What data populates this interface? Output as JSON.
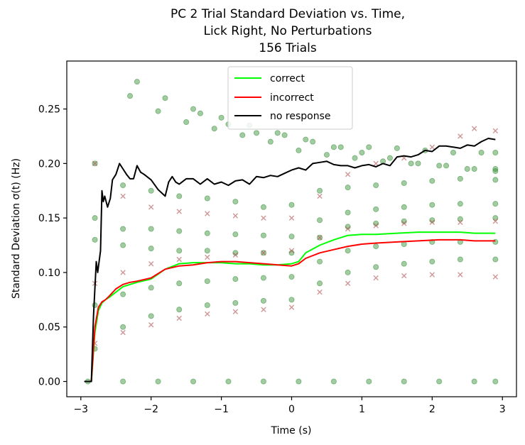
{
  "chart_data": {
    "type": "scatter",
    "title": [
      "PC 2 Trial Standard Deviation vs. Time,",
      "Lick Right, No Perturbations",
      "156 Trials"
    ],
    "xlabel": "Time (s)",
    "ylabel": "Standard Deviation σ(t) (Hz)",
    "xlim": [
      -3.2,
      3.2
    ],
    "ylim": [
      -0.014,
      0.294
    ],
    "xticks": [
      -3,
      -2,
      -1,
      0,
      1,
      2,
      3
    ],
    "xtick_labels": [
      "−3",
      "−2",
      "−1",
      "0",
      "1",
      "2",
      "3"
    ],
    "yticks": [
      0.0,
      0.05,
      0.1,
      0.15,
      0.2,
      0.25
    ],
    "ytick_labels": [
      "0.00",
      "0.05",
      "0.10",
      "0.15",
      "0.20",
      "0.25"
    ],
    "grid": false,
    "legend_position": "top-center",
    "legend": [
      {
        "label": "correct",
        "color": "#00ff00"
      },
      {
        "label": "incorrect",
        "color": "#ff0000"
      },
      {
        "label": "no response",
        "color": "#000000"
      }
    ],
    "series": [
      {
        "name": "correct",
        "kind": "line",
        "color": "#00ff00",
        "x": [
          -2.95,
          -2.85,
          -2.8,
          -2.75,
          -2.7,
          -2.65,
          -2.6,
          -2.5,
          -2.4,
          -2.3,
          -2.2,
          -2.0,
          -1.8,
          -1.6,
          -1.4,
          -1.2,
          -1.0,
          -0.8,
          -0.6,
          -0.4,
          -0.2,
          0.0,
          0.1,
          0.2,
          0.4,
          0.6,
          0.8,
          1.0,
          1.2,
          1.5,
          1.8,
          2.1,
          2.4,
          2.6,
          2.9
        ],
        "y": [
          0.0,
          0.0,
          0.045,
          0.065,
          0.072,
          0.075,
          0.077,
          0.082,
          0.087,
          0.089,
          0.091,
          0.094,
          0.103,
          0.108,
          0.109,
          0.109,
          0.109,
          0.108,
          0.108,
          0.107,
          0.107,
          0.108,
          0.11,
          0.118,
          0.125,
          0.13,
          0.134,
          0.135,
          0.135,
          0.136,
          0.137,
          0.137,
          0.137,
          0.136,
          0.136
        ]
      },
      {
        "name": "incorrect",
        "kind": "line",
        "color": "#ff0000",
        "x": [
          -2.95,
          -2.85,
          -2.8,
          -2.75,
          -2.7,
          -2.65,
          -2.6,
          -2.5,
          -2.4,
          -2.3,
          -2.2,
          -2.0,
          -1.8,
          -1.6,
          -1.4,
          -1.2,
          -1.0,
          -0.8,
          -0.6,
          -0.4,
          -0.2,
          0.0,
          0.1,
          0.2,
          0.4,
          0.6,
          0.8,
          1.0,
          1.2,
          1.5,
          1.8,
          2.1,
          2.4,
          2.6,
          2.9
        ],
        "y": [
          0.0,
          0.0,
          0.05,
          0.068,
          0.073,
          0.075,
          0.078,
          0.085,
          0.089,
          0.091,
          0.092,
          0.095,
          0.103,
          0.106,
          0.107,
          0.109,
          0.11,
          0.11,
          0.109,
          0.108,
          0.107,
          0.106,
          0.108,
          0.113,
          0.118,
          0.121,
          0.124,
          0.126,
          0.127,
          0.128,
          0.129,
          0.13,
          0.13,
          0.129,
          0.129
        ]
      },
      {
        "name": "no response",
        "kind": "line",
        "color": "#000000",
        "x": [
          -2.95,
          -2.85,
          -2.82,
          -2.78,
          -2.76,
          -2.72,
          -2.7,
          -2.68,
          -2.66,
          -2.62,
          -2.58,
          -2.55,
          -2.5,
          -2.45,
          -2.4,
          -2.35,
          -2.3,
          -2.25,
          -2.2,
          -2.15,
          -2.1,
          -2.0,
          -1.9,
          -1.8,
          -1.75,
          -1.7,
          -1.65,
          -1.6,
          -1.5,
          -1.4,
          -1.3,
          -1.2,
          -1.1,
          -1.0,
          -0.9,
          -0.8,
          -0.7,
          -0.6,
          -0.5,
          -0.4,
          -0.3,
          -0.2,
          -0.1,
          0.0,
          0.1,
          0.2,
          0.3,
          0.4,
          0.5,
          0.6,
          0.7,
          0.8,
          0.9,
          1.0,
          1.1,
          1.2,
          1.3,
          1.4,
          1.5,
          1.6,
          1.7,
          1.8,
          1.9,
          2.0,
          2.1,
          2.2,
          2.3,
          2.4,
          2.5,
          2.6,
          2.7,
          2.8,
          2.9
        ],
        "y": [
          0.0,
          0.0,
          0.06,
          0.11,
          0.1,
          0.12,
          0.175,
          0.165,
          0.17,
          0.16,
          0.168,
          0.185,
          0.19,
          0.2,
          0.195,
          0.19,
          0.186,
          0.186,
          0.198,
          0.192,
          0.19,
          0.185,
          0.176,
          0.17,
          0.183,
          0.188,
          0.183,
          0.181,
          0.186,
          0.186,
          0.181,
          0.186,
          0.181,
          0.183,
          0.18,
          0.184,
          0.185,
          0.181,
          0.188,
          0.187,
          0.189,
          0.188,
          0.191,
          0.194,
          0.196,
          0.194,
          0.2,
          0.201,
          0.202,
          0.199,
          0.198,
          0.198,
          0.196,
          0.198,
          0.199,
          0.197,
          0.2,
          0.198,
          0.206,
          0.207,
          0.206,
          0.208,
          0.212,
          0.211,
          0.216,
          0.216,
          0.215,
          0.214,
          0.217,
          0.216,
          0.22,
          0.223,
          0.222
        ]
      },
      {
        "name": "correct",
        "kind": "trial-markers",
        "marker": "circle",
        "color": "#2e8b2e",
        "trials": [
          {
            "x": [
              -2.2,
              -1.8,
              -1.4,
              -1.0,
              -0.6,
              -0.2,
              0.2,
              0.6,
              1.0,
              1.4,
              1.8,
              2.2,
              2.6,
              2.9
            ],
            "y": [
              0.275,
              0.26,
              0.25,
              0.242,
              0.235,
              0.228,
              0.222,
              0.215,
              0.21,
              0.205,
              0.2,
              0.198,
              0.195,
              0.195
            ]
          },
          {
            "x": [
              -2.3,
              -1.9,
              -1.5,
              -1.1,
              -0.7,
              -0.3,
              0.1,
              0.5,
              0.9,
              1.3,
              1.7,
              2.1,
              2.5,
              2.9
            ],
            "y": [
              0.262,
              0.248,
              0.238,
              0.232,
              0.226,
              0.22,
              0.212,
              0.208,
              0.205,
              0.202,
              0.2,
              0.198,
              0.195,
              0.193
            ]
          },
          {
            "x": [
              -1.3,
              -0.9,
              -0.5,
              -0.1,
              0.3,
              0.7,
              1.1,
              1.5,
              1.9,
              2.3,
              2.7,
              2.9
            ],
            "y": [
              0.246,
              0.236,
              0.228,
              0.226,
              0.22,
              0.215,
              0.215,
              0.214,
              0.212,
              0.21,
              0.21,
              0.21
            ]
          },
          {
            "x": [
              -2.8,
              -2.4,
              -2.0,
              -1.6,
              -1.2,
              -0.8,
              -0.4,
              0.0,
              0.4,
              0.8,
              1.2,
              1.6,
              2.0,
              2.4,
              2.9
            ],
            "y": [
              0.2,
              0.18,
              0.175,
              0.17,
              0.168,
              0.165,
              0.16,
              0.162,
              0.175,
              0.178,
              0.18,
              0.182,
              0.184,
              0.186,
              0.185
            ]
          },
          {
            "x": [
              -2.8,
              -2.4,
              -2.0,
              -1.6,
              -1.2,
              -0.8,
              -0.4,
              0.0,
              0.4,
              0.8,
              1.2,
              1.6,
              2.0,
              2.4,
              2.9
            ],
            "y": [
              0.15,
              0.14,
              0.14,
              0.138,
              0.136,
              0.135,
              0.134,
              0.133,
              0.148,
              0.155,
              0.158,
              0.16,
              0.162,
              0.163,
              0.163
            ]
          },
          {
            "x": [
              -2.8,
              -2.4,
              -2.0,
              -1.6,
              -1.2,
              -0.8,
              -0.4,
              0.0,
              0.4,
              0.8,
              1.2,
              1.6,
              2.0,
              2.4,
              2.9
            ],
            "y": [
              0.13,
              0.125,
              0.122,
              0.12,
              0.12,
              0.118,
              0.118,
              0.118,
              0.132,
              0.142,
              0.145,
              0.147,
              0.148,
              0.149,
              0.15
            ]
          },
          {
            "x": [
              -2.8,
              -2.4,
              -2.0,
              -1.6,
              -1.2,
              -0.8,
              -0.4,
              0.0,
              0.4,
              0.8,
              1.2,
              1.6,
              2.0,
              2.4,
              2.9
            ],
            "y": [
              0.07,
              0.08,
              0.086,
              0.09,
              0.092,
              0.094,
              0.095,
              0.096,
              0.11,
              0.12,
              0.124,
              0.126,
              0.128,
              0.128,
              0.128
            ]
          },
          {
            "x": [
              -2.8,
              -2.4,
              -2.0,
              -1.6,
              -1.2,
              -0.8,
              -0.4,
              0.0,
              0.4,
              0.8,
              1.2,
              1.6,
              2.0,
              2.4,
              2.9
            ],
            "y": [
              0.03,
              0.05,
              0.06,
              0.066,
              0.07,
              0.072,
              0.074,
              0.075,
              0.09,
              0.1,
              0.105,
              0.108,
              0.11,
              0.112,
              0.112
            ]
          },
          {
            "x": [
              -2.9,
              -2.4,
              -1.9,
              -1.4,
              -0.9,
              -0.4,
              0.1,
              0.6,
              1.1,
              1.6,
              2.1,
              2.6,
              2.9
            ],
            "y": [
              0.0,
              0.0,
              0.0,
              0.0,
              0.0,
              0.0,
              0.0,
              0.0,
              0.0,
              0.0,
              0.0,
              0.0,
              0.0
            ]
          }
        ]
      },
      {
        "name": "incorrect",
        "kind": "trial-markers",
        "marker": "x",
        "color": "#b05050",
        "trials": [
          {
            "x": [
              -2.8,
              -2.4,
              -2.0,
              -1.6,
              -1.2,
              -0.8,
              -0.4,
              0.0,
              0.4,
              0.8,
              1.2,
              1.6,
              2.0,
              2.4,
              2.9
            ],
            "y": [
              0.035,
              0.045,
              0.052,
              0.058,
              0.062,
              0.064,
              0.066,
              0.068,
              0.082,
              0.09,
              0.095,
              0.097,
              0.098,
              0.098,
              0.096
            ]
          },
          {
            "x": [
              -2.8,
              -2.4,
              -2.0,
              -1.6,
              -1.2,
              -0.8,
              -0.4,
              0.0,
              0.4,
              0.8,
              1.2,
              1.6,
              2.0,
              2.4,
              2.9
            ],
            "y": [
              0.09,
              0.1,
              0.108,
              0.112,
              0.114,
              0.116,
              0.118,
              0.12,
              0.132,
              0.14,
              0.143,
              0.145,
              0.146,
              0.146,
              0.147
            ]
          },
          {
            "x": [
              -2.8,
              -2.4,
              -2.0,
              -1.6,
              -1.2,
              -0.8,
              -0.4,
              0.0,
              0.4,
              0.8,
              1.2,
              1.6,
              2.0,
              2.4,
              2.6,
              2.9
            ],
            "y": [
              0.2,
              0.17,
              0.16,
              0.156,
              0.154,
              0.152,
              0.15,
              0.15,
              0.17,
              0.19,
              0.2,
              0.205,
              0.215,
              0.225,
              0.232,
              0.23
            ]
          }
        ]
      }
    ]
  }
}
